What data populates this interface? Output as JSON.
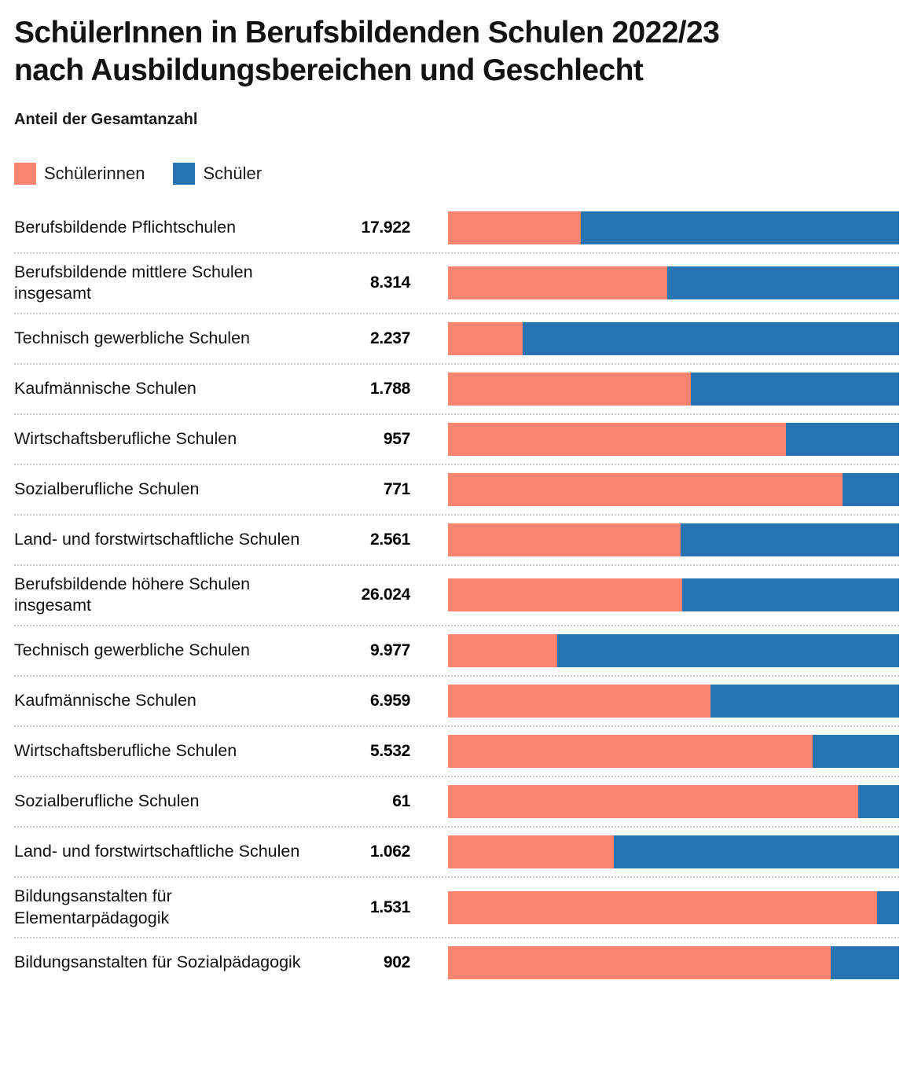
{
  "title": "SchülerInnen in Berufsbildenden Schulen 2022/23 nach Ausbildungsbereichen und Geschlecht",
  "subtitle": "Anteil der Gesamtanzahl",
  "colors": {
    "female": "#fa8470",
    "male": "#2874b2",
    "separator": "#cdcdcd",
    "text": "#131313"
  },
  "legend": [
    {
      "label": "Schülerinnen",
      "color": "#fa8470"
    },
    {
      "label": "Schüler",
      "color": "#2874b2"
    }
  ],
  "chart_data": {
    "type": "bar",
    "orientation": "horizontal",
    "stacked": true,
    "stack_unit": "percent of row total",
    "xlim": [
      0,
      100
    ],
    "grid": false,
    "legend_position": "top",
    "series_names": [
      "Schülerinnen",
      "Schüler"
    ],
    "rows": [
      {
        "label": "Berufsbildende Pflichtschulen",
        "total": "17.922",
        "female_pct": 29.4,
        "male_pct": 70.6
      },
      {
        "label": "Berufsbildende mittlere Schulen insgesamt",
        "total": "8.314",
        "female_pct": 48.6,
        "male_pct": 51.4
      },
      {
        "label": "Technisch gewerbliche Schulen",
        "total": "2.237",
        "female_pct": 16.6,
        "male_pct": 83.4
      },
      {
        "label": "Kaufmännische Schulen",
        "total": "1.788",
        "female_pct": 53.8,
        "male_pct": 46.2
      },
      {
        "label": "Wirtschaftsberufliche Schulen",
        "total": "957",
        "female_pct": 74.9,
        "male_pct": 25.1
      },
      {
        "label": "Sozialberufliche Schulen",
        "total": "771",
        "female_pct": 87.4,
        "male_pct": 12.6
      },
      {
        "label": "Land- und forstwirtschaftliche Schulen",
        "total": "2.561",
        "female_pct": 51.6,
        "male_pct": 48.4
      },
      {
        "label": "Berufsbildende höhere Schulen insgesamt",
        "total": "26.024",
        "female_pct": 51.9,
        "male_pct": 48.1
      },
      {
        "label": "Technisch gewerbliche Schulen",
        "total": "9.977",
        "female_pct": 24.2,
        "male_pct": 75.8
      },
      {
        "label": "Kaufmännische Schulen",
        "total": "6.959",
        "female_pct": 58.2,
        "male_pct": 41.8
      },
      {
        "label": "Wirtschaftsberufliche Schulen",
        "total": "5.532",
        "female_pct": 80.9,
        "male_pct": 19.1
      },
      {
        "label": "Sozialberufliche Schulen",
        "total": "61",
        "female_pct": 91.0,
        "male_pct": 9.0
      },
      {
        "label": "Land- und forstwirtschaftliche Schulen",
        "total": "1.062",
        "female_pct": 36.7,
        "male_pct": 63.3
      },
      {
        "label": "Bildungsanstalten für Elementarpädagogik",
        "total": "1.531",
        "female_pct": 95.1,
        "male_pct": 4.9
      },
      {
        "label": "Bildungsanstalten für Sozialpädagogik",
        "total": "902",
        "female_pct": 84.9,
        "male_pct": 15.1
      }
    ]
  }
}
